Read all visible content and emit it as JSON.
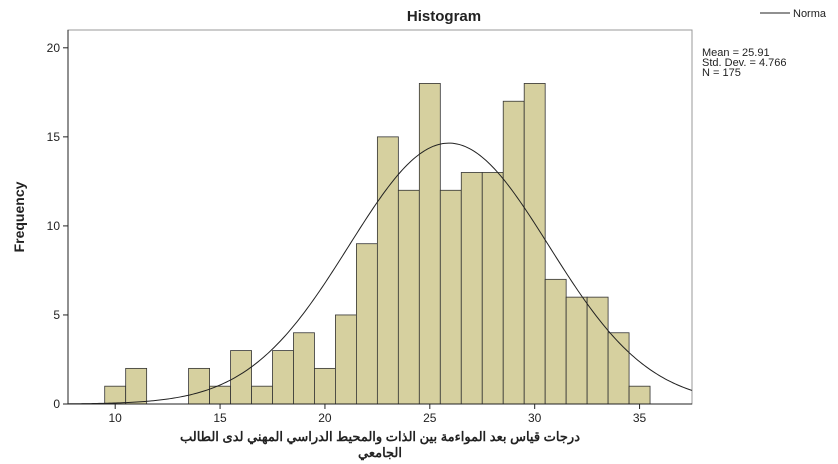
{
  "chart_data": {
    "type": "histogram",
    "title": "Histogram",
    "xlabel": [
      "درجات قياس بعد المواءمة بين الذات والمحيط الدراسي المهني لدى الطالب",
      "الجامعي"
    ],
    "ylabel": "Frequency",
    "bins": [
      9.5,
      10.5,
      11.5,
      12.5,
      13.5,
      14.5,
      15.5,
      16.5,
      17.5,
      18.5,
      19.5,
      20.5,
      21.5,
      22.5,
      23.5,
      24.5,
      25.5,
      26.5,
      27.5,
      28.5,
      29.5,
      30.5,
      31.5,
      32.5,
      33.5,
      34.5,
      35.5
    ],
    "values": [
      1,
      2,
      0,
      0,
      2,
      1,
      3,
      1,
      3,
      4,
      2,
      5,
      9,
      15,
      12,
      18,
      12,
      13,
      13,
      17,
      18,
      7,
      6,
      6,
      4,
      1
    ],
    "color": "#d6d09f",
    "xlim": [
      7.75,
      37.5
    ],
    "xticks": [
      10,
      15,
      20,
      25,
      30,
      35
    ],
    "ylim": [
      0,
      21
    ],
    "yticks": [
      0,
      5,
      10,
      15,
      20
    ],
    "legend": "Norma",
    "stats": [
      {
        "label": "Mean = 25.91",
        "value": 25.91
      },
      {
        "label": "Std. Dev. = 4.766",
        "value": 4.766
      },
      {
        "label": "N = 175",
        "value": 175
      }
    ]
  }
}
